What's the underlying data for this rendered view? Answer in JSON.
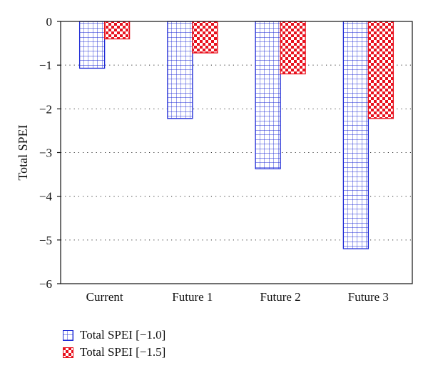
{
  "chart_data": {
    "type": "bar",
    "categories": [
      "Current",
      "Future 1",
      "Future 2",
      "Future 3"
    ],
    "series": [
      {
        "name": "Total SPEI [−1.0]",
        "values": [
          -1.07,
          -2.22,
          -3.37,
          -5.2
        ],
        "color": "#1f2bd6",
        "pattern": "grid"
      },
      {
        "name": "Total SPEI [−1.5]",
        "values": [
          -0.4,
          -0.72,
          -1.2,
          -2.22
        ],
        "color": "#e8121e",
        "pattern": "checker"
      }
    ],
    "title": "",
    "xlabel": "",
    "ylabel": "Total SPEI",
    "ylim": [
      -6,
      0
    ],
    "yticks": [
      0,
      -1,
      -2,
      -3,
      -4,
      -5,
      -6
    ],
    "ytick_labels": [
      "0",
      "−1",
      "−2",
      "−3",
      "−4",
      "−5",
      "−6"
    ],
    "grid": "horizontal dotted",
    "legend_position": "bottom-left"
  }
}
